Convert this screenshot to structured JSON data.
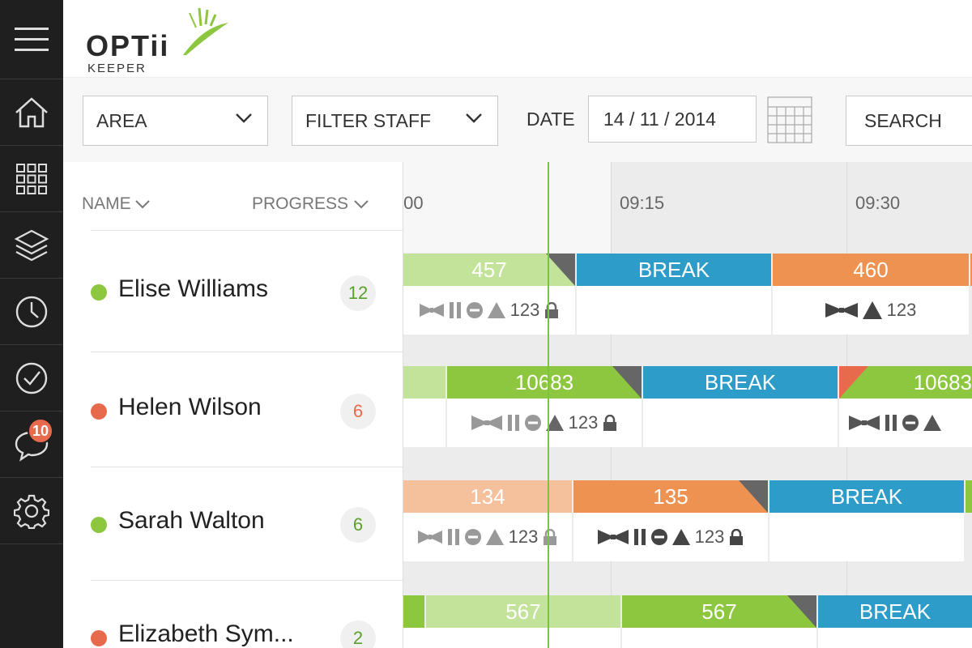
{
  "colors": {
    "sidebar_bg": "#1f1f1f",
    "green": "#8dc63f",
    "light_green": "#c3e39a",
    "blue": "#2e9cc9",
    "orange": "#ee9252",
    "light_orange": "#f5c09c",
    "red_status": "#e86a4d",
    "green_status": "#8dc63f"
  },
  "sidebar": {
    "items": [
      {
        "icon": "menu-icon"
      },
      {
        "icon": "home-icon"
      },
      {
        "icon": "grid-icon"
      },
      {
        "icon": "layers-icon"
      },
      {
        "icon": "clock-icon"
      },
      {
        "icon": "check-circle-icon"
      },
      {
        "icon": "chat-icon",
        "badge": "10"
      },
      {
        "icon": "gear-icon"
      }
    ]
  },
  "header": {
    "logo_word": "OPTii",
    "logo_sub": "KEEPER"
  },
  "filters": {
    "area": "AREA",
    "staff": "FILTER STAFF",
    "date_label": "DATE",
    "date_value": "14 / 11 / 2014",
    "search": "SEARCH"
  },
  "stafflist": {
    "col_name": "NAME",
    "col_progress": "PROGRESS",
    "rows": [
      {
        "name": "Elise Williams",
        "count": "12",
        "status": "green"
      },
      {
        "name": "Helen Wilson",
        "count": "6",
        "status": "red"
      },
      {
        "name": "Sarah Walton",
        "count": "6",
        "status": "green"
      },
      {
        "name": "Elizabeth Sym...",
        "count": "2",
        "status": "red"
      }
    ]
  },
  "timeline": {
    "times": [
      ":00",
      "09:15",
      "09:30"
    ],
    "rows": [
      {
        "tasks": [
          {
            "label": "457",
            "color": "light_green",
            "meta": "123"
          },
          {
            "label": "BREAK",
            "color": "blue"
          },
          {
            "label": "460",
            "color": "orange",
            "meta": "123"
          }
        ]
      },
      {
        "tasks": [
          {
            "label": "10683",
            "color": "green",
            "meta": "123"
          },
          {
            "label": "BREAK",
            "color": "blue"
          },
          {
            "label": "10683",
            "color": "green",
            "meta": ""
          }
        ]
      },
      {
        "tasks": [
          {
            "label": "134",
            "color": "light_orange",
            "meta": "123"
          },
          {
            "label": "135",
            "color": "orange",
            "meta": "123"
          },
          {
            "label": "BREAK",
            "color": "blue"
          }
        ]
      },
      {
        "tasks": [
          {
            "label": "567",
            "color": "light_green"
          },
          {
            "label": "567",
            "color": "green"
          },
          {
            "label": "BREAK",
            "color": "blue"
          }
        ]
      }
    ]
  }
}
